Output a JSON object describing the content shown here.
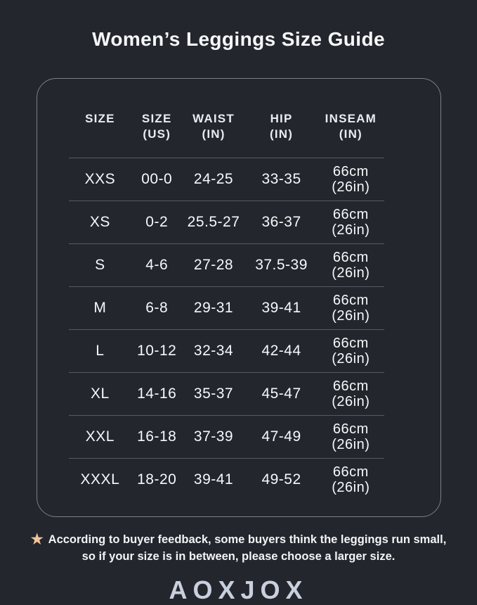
{
  "page": {
    "title": "Women’s Leggings Size Guide"
  },
  "colors": {
    "background": "#24262e",
    "card_border": "#7b7f87",
    "row_divider": "#565a63",
    "text": "#f7f8fa",
    "star_accent": "#f2c49c",
    "logo": "#c8d0dd"
  },
  "table": {
    "headers": [
      {
        "line1": "SIZE",
        "line2": ""
      },
      {
        "line1": "SIZE",
        "line2": "(US)"
      },
      {
        "line1": "WAIST",
        "line2": "(IN)"
      },
      {
        "line1": "HIP",
        "line2": "(IN)"
      },
      {
        "line1": "INSEAM",
        "line2": "(IN)"
      }
    ],
    "rows": [
      {
        "size": "XXS",
        "size_us": "00-0",
        "waist": "24-25",
        "hip": "33-35",
        "inseam_line1": "66cm",
        "inseam_line2": "(26in)"
      },
      {
        "size": "XS",
        "size_us": "0-2",
        "waist": "25.5-27",
        "hip": "36-37",
        "inseam_line1": "66cm",
        "inseam_line2": "(26in)"
      },
      {
        "size": "S",
        "size_us": "4-6",
        "waist": "27-28",
        "hip": "37.5-39",
        "inseam_line1": "66cm",
        "inseam_line2": "(26in)"
      },
      {
        "size": "M",
        "size_us": "6-8",
        "waist": "29-31",
        "hip": "39-41",
        "inseam_line1": "66cm",
        "inseam_line2": "(26in)"
      },
      {
        "size": "L",
        "size_us": "10-12",
        "waist": "32-34",
        "hip": "42-44",
        "inseam_line1": "66cm",
        "inseam_line2": "(26in)"
      },
      {
        "size": "XL",
        "size_us": "14-16",
        "waist": "35-37",
        "hip": "45-47",
        "inseam_line1": "66cm",
        "inseam_line2": "(26in)"
      },
      {
        "size": "XXL",
        "size_us": "16-18",
        "waist": "37-39",
        "hip": "47-49",
        "inseam_line1": "66cm",
        "inseam_line2": "(26in)"
      },
      {
        "size": "XXXL",
        "size_us": "18-20",
        "waist": "39-41",
        "hip": "49-52",
        "inseam_line1": "66cm",
        "inseam_line2": "(26in)"
      }
    ]
  },
  "footnote": {
    "star_icon": "★",
    "text": "According to buyer feedback, some buyers think the leggings run small, so if your size is in between, please choose a larger size."
  },
  "brand": {
    "logo": "AOXJOX"
  },
  "chart_data": {
    "type": "table",
    "title": "Women’s Leggings Size Guide",
    "columns": [
      "SIZE",
      "SIZE (US)",
      "WAIST (IN)",
      "HIP (IN)",
      "INSEAM (IN)"
    ],
    "rows": [
      [
        "XXS",
        "00-0",
        "24-25",
        "33-35",
        "66cm (26in)"
      ],
      [
        "XS",
        "0-2",
        "25.5-27",
        "36-37",
        "66cm (26in)"
      ],
      [
        "S",
        "4-6",
        "27-28",
        "37.5-39",
        "66cm (26in)"
      ],
      [
        "M",
        "6-8",
        "29-31",
        "39-41",
        "66cm (26in)"
      ],
      [
        "L",
        "10-12",
        "32-34",
        "42-44",
        "66cm (26in)"
      ],
      [
        "XL",
        "14-16",
        "35-37",
        "45-47",
        "66cm (26in)"
      ],
      [
        "XXL",
        "16-18",
        "37-39",
        "47-49",
        "66cm (26in)"
      ],
      [
        "XXXL",
        "18-20",
        "39-41",
        "49-52",
        "66cm (26in)"
      ]
    ],
    "footnote": "According to buyer feedback, some buyers think the leggings run small, so if your size is in between, please choose a larger size.",
    "brand": "AOXJOX"
  }
}
